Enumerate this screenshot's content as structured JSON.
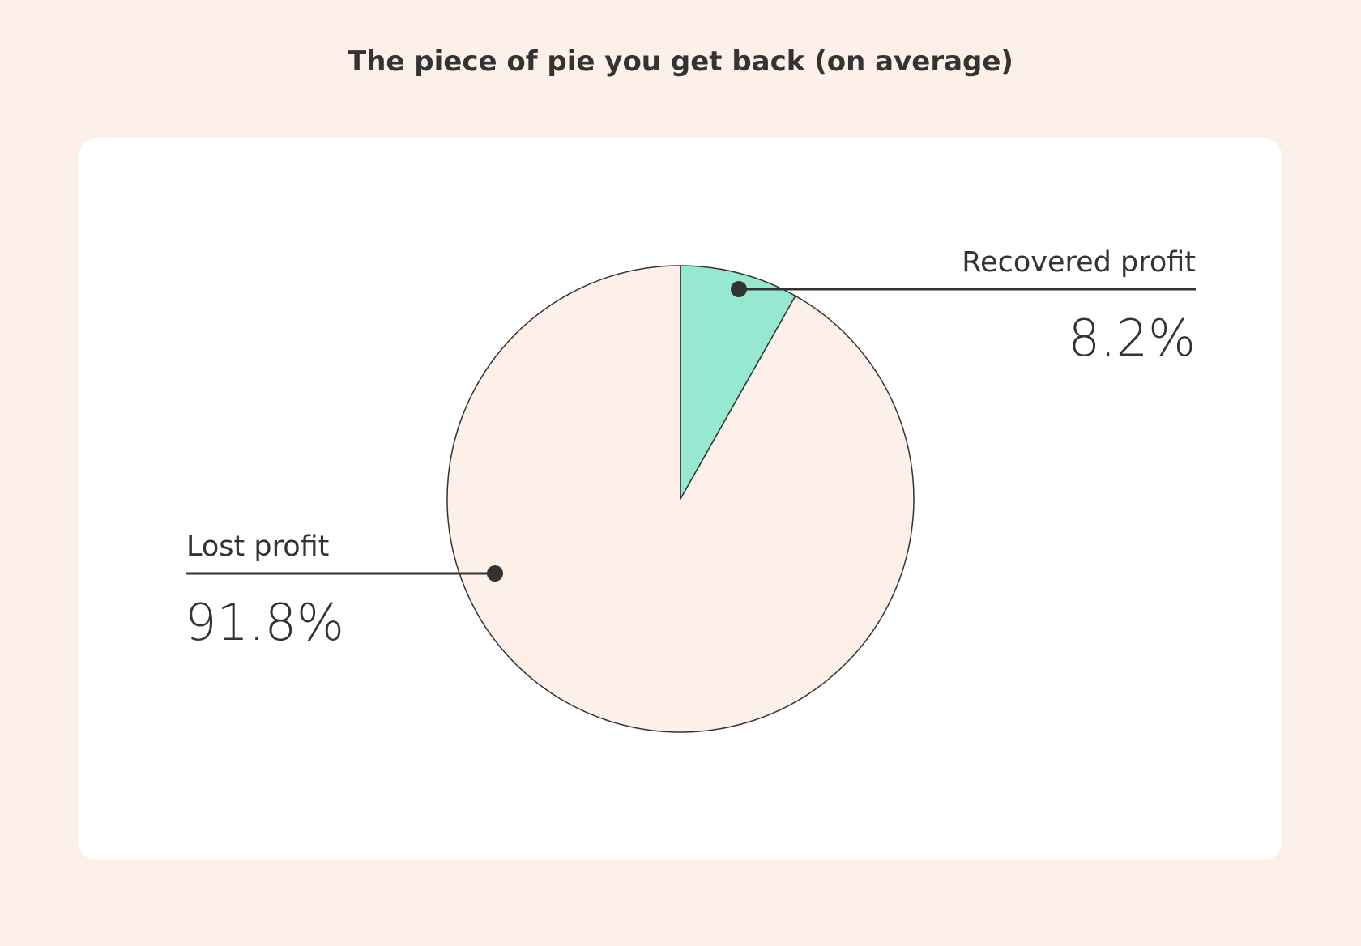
{
  "title": "The piece of pie you get back (on average)",
  "colors": {
    "page_background": "#fdf0e9",
    "card_background": "#ffffff",
    "text": "#333333",
    "slice_recovered": "#96e8d0",
    "slice_lost": "#fdf0e9",
    "outline": "#333333"
  },
  "chart_data": {
    "type": "pie",
    "title": "The piece of pie you get back (on average)",
    "unit": "%",
    "start_angle": "top",
    "direction": "clockwise",
    "slices": [
      {
        "label": "Recovered profit",
        "value": 8.2,
        "display": "8.2%",
        "color": "#96e8d0",
        "label_side": "right"
      },
      {
        "label": "Lost profit",
        "value": 91.8,
        "display": "91.8%",
        "color": "#fdf0e9",
        "label_side": "left"
      }
    ]
  }
}
